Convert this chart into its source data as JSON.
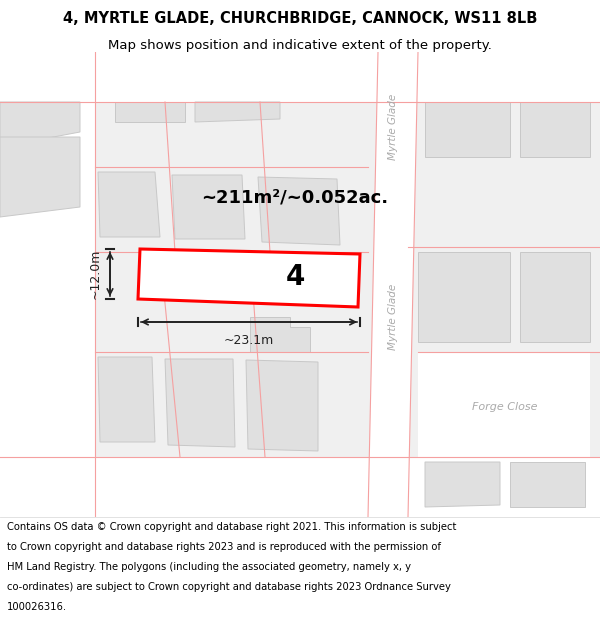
{
  "title_line1": "4, MYRTLE GLADE, CHURCHBRIDGE, CANNOCK, WS11 8LB",
  "title_line2": "Map shows position and indicative extent of the property.",
  "bg_color": "#f0f0f0",
  "road_fill": "#ffffff",
  "plot_outline_color": "#ff0000",
  "building_fill": "#e0e0e0",
  "building_outline": "#c8c8c8",
  "road_line_color": "#f5a0a0",
  "dim_color": "#222222",
  "label_4": "4",
  "area_label": "~211m²/~0.052ac.",
  "width_label": "~23.1m",
  "height_label": "~12.0m",
  "street_name_top": "Myrtle Glade",
  "street_name_mid": "Myrtle Glade",
  "street_name_forge": "Forge Close",
  "title_fontsize": 10.5,
  "subtitle_fontsize": 9.5,
  "footer_fontsize": 7.2,
  "footer_lines": [
    "Contains OS data © Crown copyright and database right 2021. This information is subject",
    "to Crown copyright and database rights 2023 and is reproduced with the permission of",
    "HM Land Registry. The polygons (including the associated geometry, namely x, y",
    "co-ordinates) are subject to Crown copyright and database rights 2023 Ordnance Survey",
    "100026316."
  ]
}
